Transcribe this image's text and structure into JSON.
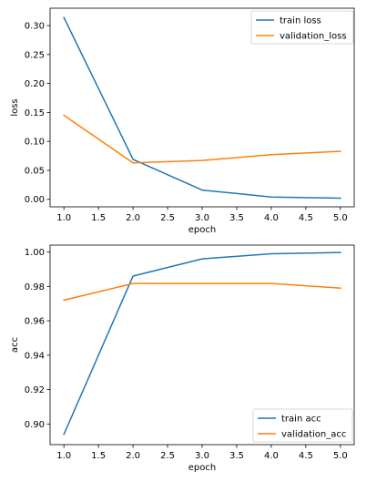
{
  "colors": {
    "train": "#1f77b4",
    "validation": "#ff7f0e",
    "axis": "#000000",
    "legend_border": "#cccccc"
  },
  "chart_data": [
    {
      "type": "line",
      "xlabel": "epoch",
      "ylabel": "loss",
      "x": [
        1,
        2,
        3,
        4,
        5
      ],
      "xlim": [
        0.8,
        5.2
      ],
      "ylim": [
        -0.013,
        0.33
      ],
      "xticks": [
        1.0,
        1.5,
        2.0,
        2.5,
        3.0,
        3.5,
        4.0,
        4.5,
        5.0
      ],
      "xtick_labels": [
        "1.0",
        "1.5",
        "2.0",
        "2.5",
        "3.0",
        "3.5",
        "4.0",
        "4.5",
        "5.0"
      ],
      "yticks": [
        0.0,
        0.05,
        0.1,
        0.15,
        0.2,
        0.25,
        0.3
      ],
      "ytick_labels": [
        "0.00",
        "0.05",
        "0.10",
        "0.15",
        "0.20",
        "0.25",
        "0.30"
      ],
      "grid": false,
      "legend_position": "top-right",
      "series": [
        {
          "name": "train loss",
          "color": "#1f77b4",
          "values": [
            0.314,
            0.069,
            0.016,
            0.004,
            0.002
          ]
        },
        {
          "name": "validation_loss",
          "color": "#ff7f0e",
          "values": [
            0.145,
            0.063,
            0.067,
            0.077,
            0.083
          ]
        }
      ]
    },
    {
      "type": "line",
      "xlabel": "epoch",
      "ylabel": "acc",
      "x": [
        1,
        2,
        3,
        4,
        5
      ],
      "xlim": [
        0.8,
        5.2
      ],
      "ylim": [
        0.888,
        1.004
      ],
      "xticks": [
        1.0,
        1.5,
        2.0,
        2.5,
        3.0,
        3.5,
        4.0,
        4.5,
        5.0
      ],
      "xtick_labels": [
        "1.0",
        "1.5",
        "2.0",
        "2.5",
        "3.0",
        "3.5",
        "4.0",
        "4.5",
        "5.0"
      ],
      "yticks": [
        0.9,
        0.92,
        0.94,
        0.96,
        0.98,
        1.0
      ],
      "ytick_labels": [
        "0.90",
        "0.92",
        "0.94",
        "0.96",
        "0.98",
        "1.00"
      ],
      "grid": false,
      "legend_position": "bottom-right",
      "series": [
        {
          "name": "train acc",
          "color": "#1f77b4",
          "values": [
            0.894,
            0.986,
            0.996,
            0.999,
            0.9997
          ]
        },
        {
          "name": "validation_acc",
          "color": "#ff7f0e",
          "values": [
            0.972,
            0.9817,
            0.9817,
            0.9817,
            0.979
          ]
        }
      ]
    }
  ]
}
